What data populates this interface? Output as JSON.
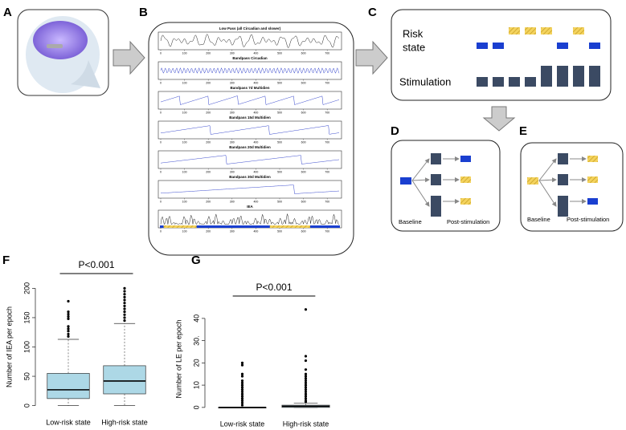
{
  "panels": {
    "a": "A",
    "b": "B",
    "c": "C",
    "d": "D",
    "e": "E",
    "f": "F",
    "g": "G"
  },
  "panel_b": {
    "subplots": [
      "Low Pass (all Circadian and slower)",
      "Bandpass Circadian",
      "Bandpass 7d Multidien",
      "Bandpass 15d Multidien",
      "Bandpass 20d Multidien",
      "Bandpass 30d Multidien",
      "IEA"
    ],
    "xticks": [
      0,
      100,
      200,
      300,
      400,
      500,
      600,
      700
    ]
  },
  "panel_c": {
    "risk_label": [
      "Risk",
      "state"
    ],
    "stimulation": "Stimulation"
  },
  "panel_d": {
    "baseline": "Baseline",
    "post": "Post-stimulation"
  },
  "panel_e": {
    "baseline": "Baseline",
    "post": "Post-stimulation"
  },
  "chart_data": [
    {
      "type": "box",
      "annotation": "P<0.001",
      "ylabel": "Number of IEA per epoch",
      "categories": [
        "Low-risk state",
        "High-risk state"
      ],
      "color": "#add8e6",
      "ylim": [
        -6,
        206
      ],
      "yticks": [
        0,
        50,
        100,
        150,
        200
      ],
      "boxes": [
        {
          "min": 0,
          "q1": 12,
          "median": 27,
          "q3": 55,
          "max": 113,
          "outliers": [
            118,
            122,
            127,
            131,
            135,
            148,
            152,
            156,
            160,
            178
          ]
        },
        {
          "min": 0,
          "q1": 20,
          "median": 42,
          "q3": 68,
          "max": 140,
          "outliers": [
            145,
            150,
            155,
            160,
            165,
            170,
            175,
            180,
            185,
            190,
            195,
            200
          ]
        }
      ]
    },
    {
      "type": "box",
      "annotation": "P<0.001",
      "ylabel": "Number of LE per epoch",
      "categories": [
        "Low-risk state",
        "High-risk state"
      ],
      "color": "#add8e6",
      "ylim": [
        -1.5,
        45
      ],
      "yticks": [
        0,
        10,
        20,
        {
          "value": 30,
          "label": "30."
        },
        40
      ],
      "boxes": [
        {
          "min": 0,
          "q1": 0,
          "median": 0,
          "q3": 0,
          "max": 0,
          "outliers": [
            1,
            2,
            3,
            4,
            5,
            6,
            7,
            8,
            9,
            10,
            11,
            12,
            14,
            15,
            19,
            20
          ]
        },
        {
          "min": 0,
          "q1": 0,
          "median": 0.5,
          "q3": 1,
          "max": 2,
          "outliers": [
            2.5,
            3,
            4,
            5,
            6,
            7,
            8,
            9,
            10,
            11,
            12,
            13,
            14,
            15,
            17,
            21,
            23,
            44
          ]
        }
      ]
    }
  ]
}
